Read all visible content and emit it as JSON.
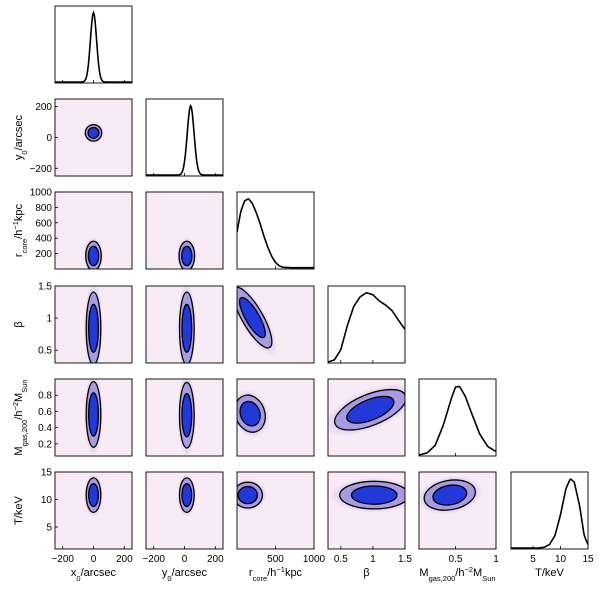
{
  "chart_data": {
    "type": "corner-plot",
    "params": [
      {
        "key": "x0",
        "axis_label": {
          "main": "x",
          "sub": "0",
          "rest": "/arcsec"
        },
        "ticks": [
          {
            "v": -200,
            "t": "−200"
          },
          {
            "v": 0,
            "t": "0"
          },
          {
            "v": 200,
            "t": "200"
          }
        ],
        "range": [
          -250,
          250
        ],
        "marginal": {
          "mean": 0,
          "sigma": 20
        }
      },
      {
        "key": "y0",
        "axis_label": {
          "main": "y",
          "sub": "0",
          "rest": "/arcsec"
        },
        "ticks": [
          {
            "v": -200,
            "t": "−200"
          },
          {
            "v": 0,
            "t": "0"
          },
          {
            "v": 200,
            "t": "200"
          }
        ],
        "range": [
          -250,
          250
        ],
        "marginal": {
          "mean": 40,
          "sigma": 22
        }
      },
      {
        "key": "rcore",
        "axis_label": {
          "main": "r",
          "sub": "core",
          "rest": "/h",
          "sup": "−1",
          "rest2": "kpc"
        },
        "ticks": [
          {
            "v": 200,
            "t": "200"
          },
          {
            "v": 400,
            "t": "400"
          },
          {
            "v": 600,
            "t": "600"
          },
          {
            "v": 800,
            "t": "800"
          },
          {
            "v": 1000,
            "t": "1000"
          }
        ],
        "xticks": [
          {
            "v": 500,
            "t": "500"
          },
          {
            "v": 1000,
            "t": "1000"
          }
        ],
        "range": [
          0,
          1000
        ],
        "marginal": {
          "points": [
            [
              0,
              0.52
            ],
            [
              50,
              0.82
            ],
            [
              100,
              0.97
            ],
            [
              150,
              1.0
            ],
            [
              200,
              0.93
            ],
            [
              250,
              0.8
            ],
            [
              300,
              0.64
            ],
            [
              350,
              0.46
            ],
            [
              400,
              0.3
            ],
            [
              450,
              0.17
            ],
            [
              500,
              0.08
            ],
            [
              550,
              0.03
            ],
            [
              600,
              0.01
            ],
            [
              700,
              0.005
            ],
            [
              1000,
              0.005
            ]
          ]
        }
      },
      {
        "key": "beta",
        "axis_label": {
          "main": "β"
        },
        "ticks": [
          {
            "v": 0.5,
            "t": "0.5"
          },
          {
            "v": 1,
            "t": "1"
          },
          {
            "v": 1.5,
            "t": "1.5"
          }
        ],
        "range": [
          0.3,
          1.5
        ],
        "marginal": {
          "points": [
            [
              0.3,
              0.0
            ],
            [
              0.4,
              0.03
            ],
            [
              0.5,
              0.18
            ],
            [
              0.6,
              0.52
            ],
            [
              0.7,
              0.8
            ],
            [
              0.8,
              0.94
            ],
            [
              0.9,
              1.0
            ],
            [
              1.0,
              0.97
            ],
            [
              1.1,
              0.88
            ],
            [
              1.2,
              0.82
            ],
            [
              1.3,
              0.74
            ],
            [
              1.4,
              0.6
            ],
            [
              1.5,
              0.47
            ]
          ]
        }
      },
      {
        "key": "mgas",
        "axis_label": {
          "main": "M",
          "sub": "gas,200",
          "rest": "/h",
          "sup": "−2",
          "rest2": "M",
          "sub2": "Sun"
        },
        "ticks": [
          {
            "v": 0.2,
            "t": "0.2"
          },
          {
            "v": 0.4,
            "t": "0.4"
          },
          {
            "v": 0.6,
            "t": "0.6"
          },
          {
            "v": 0.8,
            "t": "0.8"
          }
        ],
        "xticks": [
          {
            "v": 0.5,
            "t": "0.5"
          },
          {
            "v": 1,
            "t": "1"
          }
        ],
        "range": [
          0.05,
          1.0
        ],
        "marginal": {
          "points": [
            [
              0.05,
              0.0
            ],
            [
              0.15,
              0.03
            ],
            [
              0.25,
              0.14
            ],
            [
              0.35,
              0.43
            ],
            [
              0.45,
              0.82
            ],
            [
              0.5,
              0.98
            ],
            [
              0.55,
              0.99
            ],
            [
              0.62,
              0.85
            ],
            [
              0.7,
              0.6
            ],
            [
              0.8,
              0.3
            ],
            [
              0.9,
              0.12
            ],
            [
              1.0,
              0.05
            ]
          ]
        }
      },
      {
        "key": "T",
        "axis_label": {
          "main": "T/keV"
        },
        "ticks": [
          {
            "v": 5,
            "t": "5"
          },
          {
            "v": 10,
            "t": "10"
          },
          {
            "v": 15,
            "t": "15"
          }
        ],
        "range": [
          1,
          15
        ],
        "marginal": {
          "points": [
            [
              1,
              0.0
            ],
            [
              6,
              0.0
            ],
            [
              7,
              0.01
            ],
            [
              8,
              0.05
            ],
            [
              9,
              0.18
            ],
            [
              10,
              0.48
            ],
            [
              11,
              0.86
            ],
            [
              11.8,
              1.0
            ],
            [
              12.5,
              0.95
            ],
            [
              13.5,
              0.6
            ],
            [
              14.3,
              0.18
            ],
            [
              15,
              0.05
            ]
          ]
        }
      }
    ],
    "contour_levels": [
      "68%",
      "95%"
    ],
    "colors": {
      "inner": "#2238d8",
      "outer": "#a89be0",
      "background": "#f9ebf5",
      "line": "#000000"
    }
  }
}
